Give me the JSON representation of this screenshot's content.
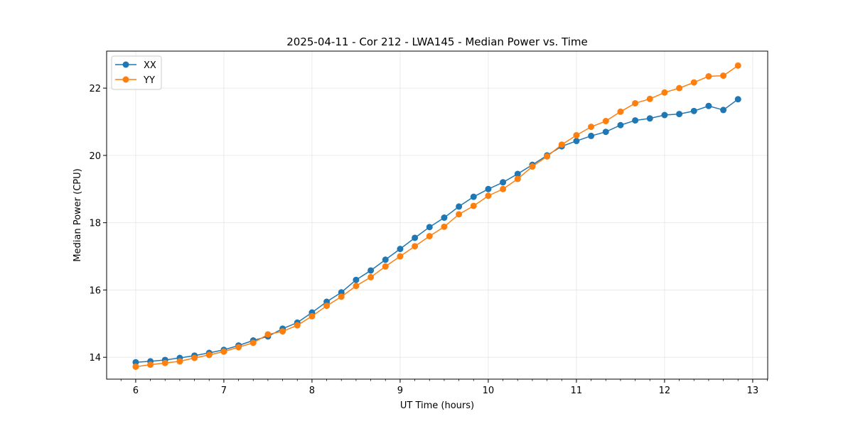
{
  "chart_data": {
    "type": "line",
    "title": "2025-04-11 - Cor 212 - LWA145 - Median Power vs. Time",
    "xlabel": "UT Time (hours)",
    "ylabel": "Median Power (CPU)",
    "xlim": [
      5.67,
      13.17
    ],
    "ylim": [
      13.35,
      23.1
    ],
    "xticks": [
      6,
      7,
      8,
      9,
      10,
      11,
      12,
      13
    ],
    "yticks": [
      14,
      16,
      18,
      20,
      22
    ],
    "grid": true,
    "legend_position": "top-left",
    "x": [
      6.0,
      6.1667,
      6.3333,
      6.5,
      6.6667,
      6.8333,
      7.0,
      7.1667,
      7.3333,
      7.5,
      7.6667,
      7.8333,
      8.0,
      8.1667,
      8.3333,
      8.5,
      8.6667,
      8.8333,
      9.0,
      9.1667,
      9.3333,
      9.5,
      9.6667,
      9.8333,
      10.0,
      10.1667,
      10.3333,
      10.5,
      10.6667,
      10.8333,
      11.0,
      11.1667,
      11.3333,
      11.5,
      11.6667,
      11.8333,
      12.0,
      12.1667,
      12.3333,
      12.5,
      12.6667,
      12.8333
    ],
    "series": [
      {
        "name": "XX",
        "color": "#1f77b4",
        "values": [
          13.85,
          13.88,
          13.92,
          13.98,
          14.05,
          14.13,
          14.22,
          14.35,
          14.5,
          14.62,
          14.85,
          15.03,
          15.33,
          15.65,
          15.93,
          16.3,
          16.58,
          16.9,
          17.22,
          17.55,
          17.87,
          18.15,
          18.48,
          18.77,
          19.0,
          19.2,
          19.45,
          19.72,
          20.0,
          20.27,
          20.43,
          20.58,
          20.7,
          20.9,
          21.04,
          21.1,
          21.2,
          21.23,
          21.32,
          21.47,
          21.35,
          21.67
        ]
      },
      {
        "name": "YY",
        "color": "#ff7f0e",
        "values": [
          13.72,
          13.78,
          13.83,
          13.88,
          13.98,
          14.07,
          14.17,
          14.3,
          14.43,
          14.68,
          14.77,
          14.95,
          15.22,
          15.53,
          15.8,
          16.12,
          16.38,
          16.7,
          17.0,
          17.3,
          17.6,
          17.88,
          18.25,
          18.5,
          18.8,
          19.0,
          19.3,
          19.67,
          19.97,
          20.32,
          20.6,
          20.85,
          21.02,
          21.3,
          21.55,
          21.68,
          21.87,
          22.0,
          22.17,
          22.35,
          22.37,
          22.67
        ]
      }
    ]
  }
}
